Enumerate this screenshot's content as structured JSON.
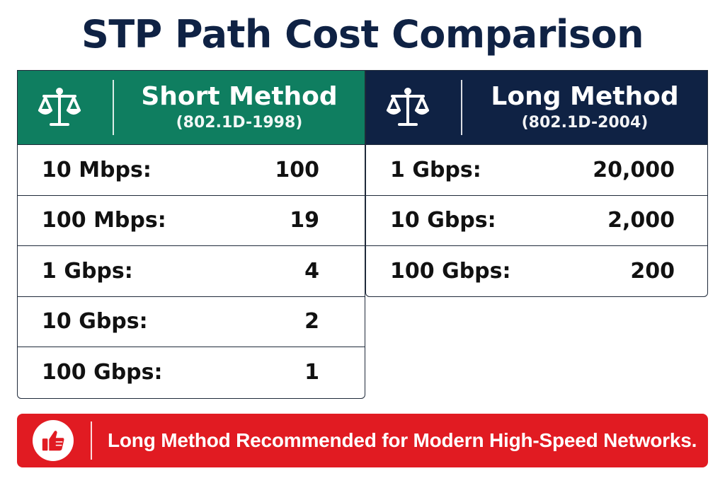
{
  "title": "STP Path Cost Comparison",
  "short_method": {
    "name": "Short Method",
    "standard": "(802.1D-1998)",
    "icon": "scale-icon",
    "color": "#0f7e60",
    "rows": [
      {
        "label": "10 Mbps:",
        "value": "100"
      },
      {
        "label": "100 Mbps:",
        "value": "19"
      },
      {
        "label": "1 Gbps:",
        "value": "4"
      },
      {
        "label": "10 Gbps:",
        "value": "2"
      },
      {
        "label": "100 Gbps:",
        "value": "1"
      }
    ]
  },
  "long_method": {
    "name": "Long Method",
    "standard": "(802.1D-2004)",
    "icon": "scale-icon",
    "color": "#0f2244",
    "rows": [
      {
        "label": "1 Gbps:",
        "value": "20,000"
      },
      {
        "label": "10 Gbps:",
        "value": "2,000"
      },
      {
        "label": "100 Gbps:",
        "value": "200"
      }
    ]
  },
  "banner": {
    "icon": "thumbs-up-icon",
    "color": "#e11b22",
    "text": "Long Method Recommended for Modern High-Speed Networks."
  }
}
